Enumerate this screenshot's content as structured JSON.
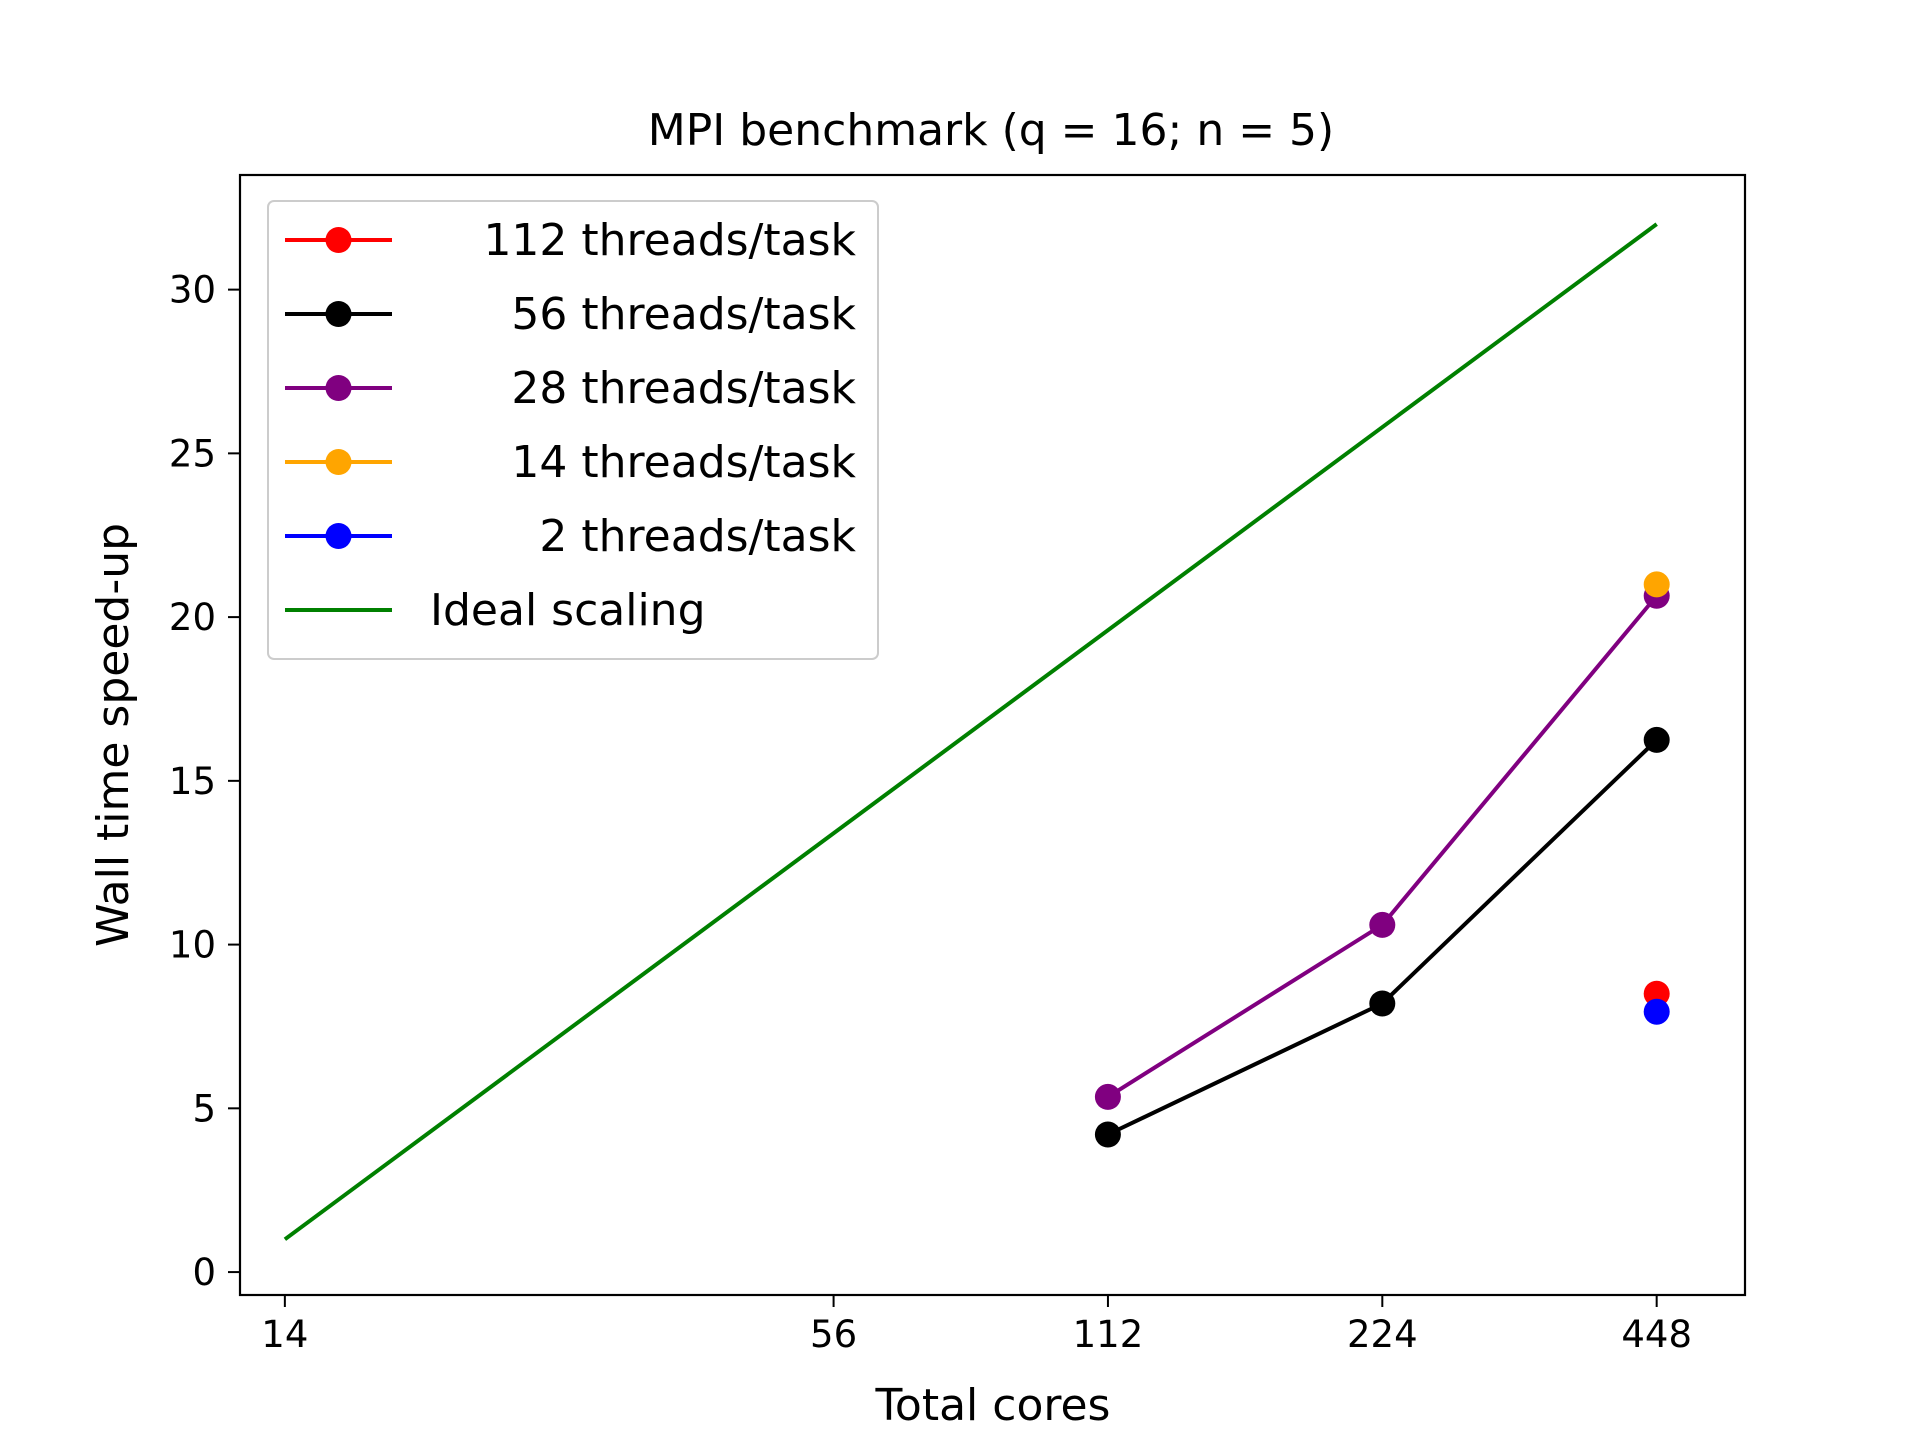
{
  "chart_data": {
    "type": "line",
    "title": "MPI benchmark (q = 16; n = 5)",
    "xlabel": "Total cores",
    "ylabel": "Wall time speed-up",
    "x_scale": "log",
    "xlim": [
      12.5,
      560
    ],
    "ylim": [
      -0.7,
      33.5
    ],
    "x_ticks": [
      14,
      56,
      112,
      224,
      448
    ],
    "x_tick_labels": [
      "14",
      "56",
      "112",
      "224",
      "448"
    ],
    "y_ticks": [
      0,
      5,
      10,
      15,
      20,
      25,
      30
    ],
    "y_tick_labels": [
      "0",
      "5",
      "10",
      "15",
      "20",
      "25",
      "30"
    ],
    "grid": false,
    "legend_position": "top-left",
    "series": [
      {
        "name": "112 threads/task",
        "color": "#ff0000",
        "marker": true,
        "line": true,
        "x": [
          448
        ],
        "y": [
          8.5
        ]
      },
      {
        "name": "56 threads/task",
        "color": "#000000",
        "marker": true,
        "line": true,
        "x": [
          112,
          224,
          448
        ],
        "y": [
          4.2,
          8.2,
          16.25
        ]
      },
      {
        "name": "28 threads/task",
        "color": "#800080",
        "marker": true,
        "line": true,
        "x": [
          112,
          224,
          448
        ],
        "y": [
          5.35,
          10.6,
          20.65
        ]
      },
      {
        "name": "14 threads/task",
        "color": "#ffa500",
        "marker": true,
        "line": true,
        "x": [
          448
        ],
        "y": [
          21.0
        ]
      },
      {
        "name": "2 threads/task",
        "color": "#0000ff",
        "marker": true,
        "line": true,
        "x": [
          448
        ],
        "y": [
          7.95
        ]
      },
      {
        "name": "Ideal scaling",
        "color": "#008000",
        "marker": false,
        "line": true,
        "x": [
          14,
          448
        ],
        "y": [
          1,
          32
        ]
      }
    ]
  }
}
